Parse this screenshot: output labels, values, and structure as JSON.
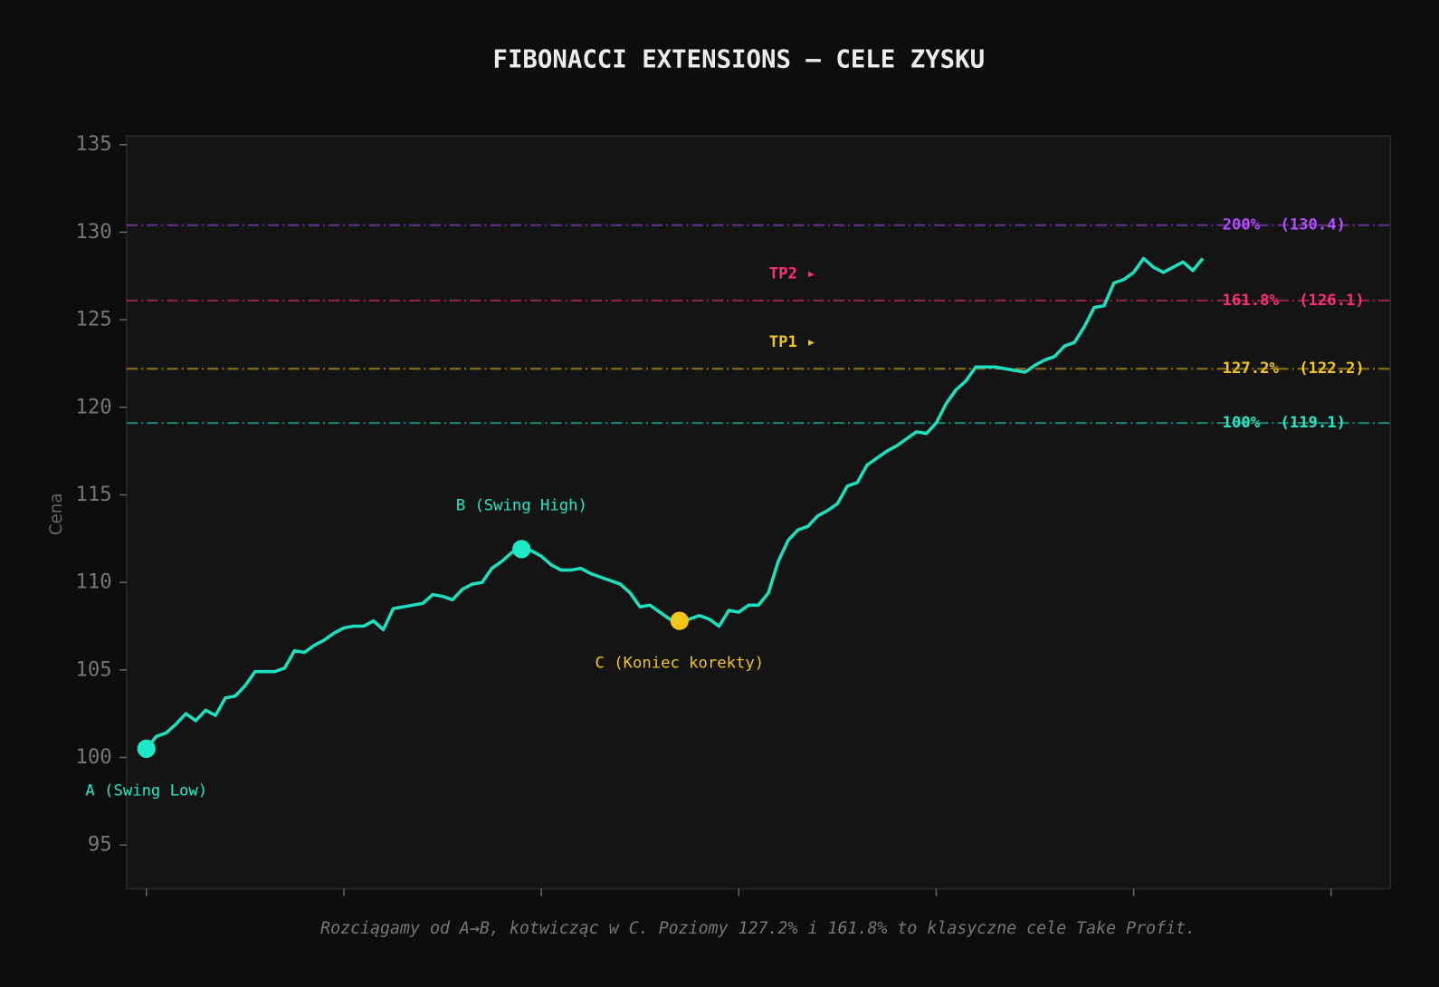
{
  "chart_data": {
    "type": "line",
    "title": "FIBONACCI EXTENSIONS — CELE ZYSKU",
    "y_label": "Cena",
    "caption": "Rozciągamy od A→B, kotwicząc w C. Poziomy 127.2% i 161.8% to klasyczne cele Take Profit.",
    "color": "#1de0c0",
    "x": [
      0,
      1,
      2,
      3,
      4,
      5,
      6,
      7,
      8,
      9,
      10,
      11,
      12,
      13,
      14,
      15,
      16,
      17,
      18,
      19,
      20,
      21,
      22,
      23,
      24,
      25,
      26,
      27,
      28,
      29,
      30,
      31,
      32,
      33,
      34,
      35,
      36,
      37,
      38,
      39,
      40,
      41,
      42,
      43,
      44,
      45,
      46,
      47,
      48,
      49,
      50,
      51,
      52,
      53,
      54,
      55,
      56,
      57,
      58,
      59,
      60,
      61,
      62,
      63,
      64,
      65,
      66,
      67,
      68,
      69,
      70,
      71,
      72,
      73,
      74,
      75,
      76,
      77,
      78,
      79,
      80,
      81,
      82,
      83,
      84,
      85,
      86,
      87,
      88,
      89,
      90,
      91,
      92,
      93,
      94,
      95,
      96,
      97,
      98,
      99,
      100,
      101,
      102,
      103,
      104,
      105,
      106,
      107
    ],
    "values": [
      100.5,
      101.2,
      101.4,
      101.9,
      102.5,
      102.1,
      102.7,
      102.4,
      103.4,
      103.5,
      104.1,
      104.9,
      104.9,
      104.9,
      105.1,
      106.1,
      106.0,
      106.4,
      106.7,
      107.1,
      107.4,
      107.5,
      107.5,
      107.8,
      107.3,
      108.5,
      108.6,
      108.7,
      108.8,
      109.3,
      109.2,
      109.0,
      109.6,
      109.9,
      110.0,
      110.8,
      111.2,
      111.7,
      111.9,
      111.8,
      111.5,
      111.0,
      110.7,
      110.7,
      110.8,
      110.5,
      110.3,
      110.1,
      109.9,
      109.4,
      108.6,
      108.7,
      108.3,
      107.9,
      107.8,
      107.9,
      108.1,
      107.9,
      107.5,
      108.4,
      108.3,
      108.7,
      108.7,
      109.4,
      111.2,
      112.4,
      113.0,
      113.2,
      113.8,
      114.1,
      114.5,
      115.5,
      115.7,
      116.7,
      117.1,
      117.5,
      117.8,
      118.2,
      118.6,
      118.5,
      119.1,
      120.2,
      121.0,
      121.5,
      122.3,
      122.3,
      122.3,
      122.2,
      122.1,
      122.0,
      122.4,
      122.7,
      122.9,
      123.5,
      123.7,
      124.6,
      125.7,
      125.8,
      127.1,
      127.3,
      127.7,
      128.5,
      128.0,
      127.7,
      128.0,
      128.3,
      127.8,
      128.5
    ],
    "points": [
      {
        "label": "A (Swing Low)",
        "x": 0,
        "y": 100.5,
        "color": "#1de9c9"
      },
      {
        "label": "B (Swing High)",
        "x": 38,
        "y": 111.9,
        "color": "#1de9c9"
      },
      {
        "label": "C (Koniec korekty)",
        "x": 54,
        "y": 107.8,
        "color": "#f5c518"
      }
    ],
    "levels": [
      {
        "name": "100%",
        "value": 119.1,
        "value_label": "(119.1)",
        "color": "#1de9c9"
      },
      {
        "name": "127.2%",
        "value": 122.2,
        "value_label": "(122.2)",
        "color": "#f5c518",
        "target": "TP1 ▸"
      },
      {
        "name": "161.8%",
        "value": 126.1,
        "value_label": "(126.1)",
        "color": "#ff2d78",
        "target": "TP2 ▸"
      },
      {
        "name": "200%",
        "value": 130.4,
        "value_label": "(130.4)",
        "color": "#b44cff"
      }
    ],
    "xlim": [
      -2,
      126
    ],
    "xticks": [
      0,
      20,
      40,
      60,
      80,
      100,
      120
    ],
    "ylim": [
      92.5,
      135.5
    ],
    "yticks": [
      95,
      100,
      105,
      110,
      115,
      120,
      125,
      130,
      135
    ]
  }
}
